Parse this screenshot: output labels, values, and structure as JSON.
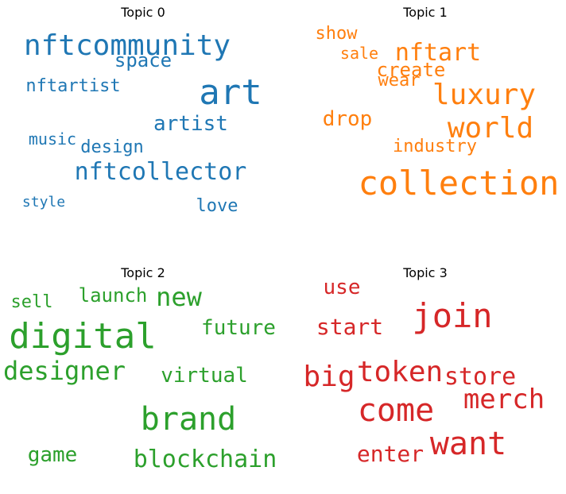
{
  "chart_data": [
    {
      "type": "wordcloud",
      "title": "Topic 0",
      "color": "#1f77b4",
      "words": [
        {
          "text": "art",
          "weight": 1.0
        },
        {
          "text": "nftcommunity",
          "weight": 0.82
        },
        {
          "text": "nftcollector",
          "weight": 0.74
        },
        {
          "text": "artist",
          "weight": 0.58
        },
        {
          "text": "space",
          "weight": 0.55
        },
        {
          "text": "design",
          "weight": 0.5
        },
        {
          "text": "nftartist",
          "weight": 0.48
        },
        {
          "text": "love",
          "weight": 0.46
        },
        {
          "text": "music",
          "weight": 0.44
        },
        {
          "text": "style",
          "weight": 0.4
        }
      ]
    },
    {
      "type": "wordcloud",
      "title": "Topic 1",
      "color": "#ff7f0e",
      "words": [
        {
          "text": "collection",
          "weight": 1.0
        },
        {
          "text": "luxury",
          "weight": 0.83
        },
        {
          "text": "world",
          "weight": 0.83
        },
        {
          "text": "nftart",
          "weight": 0.68
        },
        {
          "text": "drop",
          "weight": 0.6
        },
        {
          "text": "create",
          "weight": 0.56
        },
        {
          "text": "industry",
          "weight": 0.52
        },
        {
          "text": "show",
          "weight": 0.52
        },
        {
          "text": "wear",
          "weight": 0.5
        },
        {
          "text": "sale",
          "weight": 0.48
        }
      ]
    },
    {
      "type": "wordcloud",
      "title": "Topic 2",
      "color": "#2ca02c",
      "words": [
        {
          "text": "digital",
          "weight": 1.0
        },
        {
          "text": "brand",
          "weight": 0.9
        },
        {
          "text": "designer",
          "weight": 0.73
        },
        {
          "text": "new",
          "weight": 0.73
        },
        {
          "text": "blockchain",
          "weight": 0.7
        },
        {
          "text": "future",
          "weight": 0.6
        },
        {
          "text": "virtual",
          "weight": 0.6
        },
        {
          "text": "game",
          "weight": 0.6
        },
        {
          "text": "launch",
          "weight": 0.57
        },
        {
          "text": "sell",
          "weight": 0.52
        }
      ]
    },
    {
      "type": "wordcloud",
      "title": "Topic 3",
      "color": "#d62728",
      "words": [
        {
          "text": "join",
          "weight": 1.0
        },
        {
          "text": "come",
          "weight": 0.97
        },
        {
          "text": "want",
          "weight": 0.97
        },
        {
          "text": "token",
          "weight": 0.88
        },
        {
          "text": "big",
          "weight": 0.88
        },
        {
          "text": "merch",
          "weight": 0.8
        },
        {
          "text": "store",
          "weight": 0.74
        },
        {
          "text": "start",
          "weight": 0.7
        },
        {
          "text": "enter",
          "weight": 0.7
        },
        {
          "text": "use",
          "weight": 0.66
        }
      ]
    }
  ]
}
